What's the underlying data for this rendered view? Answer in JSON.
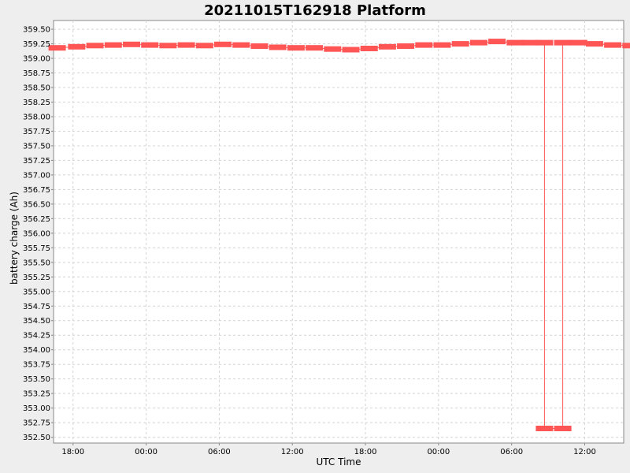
{
  "chart_data": {
    "type": "line",
    "title": "20211015T162918 Platform",
    "xlabel": "UTC Time",
    "ylabel": "battery charge (Ah)",
    "x_unit": "hours",
    "xlim": [
      -1.6,
      45.2
    ],
    "ylim": [
      352.4,
      359.65
    ],
    "grid": true,
    "legend": "none",
    "x_ticks": [
      {
        "x": 0,
        "label": "18:00"
      },
      {
        "x": 6,
        "label": "00:00"
      },
      {
        "x": 12,
        "label": "06:00"
      },
      {
        "x": 18,
        "label": "12:00"
      },
      {
        "x": 24,
        "label": "18:00"
      },
      {
        "x": 30,
        "label": "00:00"
      },
      {
        "x": 36,
        "label": "06:00"
      },
      {
        "x": 42,
        "label": "12:00"
      },
      {
        "x": 48,
        "label": "18:00"
      }
    ],
    "y_ticks": [
      352.5,
      352.75,
      353.0,
      353.25,
      353.5,
      353.75,
      354.0,
      354.25,
      354.5,
      354.75,
      355.0,
      355.25,
      355.5,
      355.75,
      356.0,
      356.25,
      356.5,
      356.75,
      357.0,
      357.25,
      357.5,
      357.75,
      358.0,
      358.25,
      358.5,
      358.75,
      359.0,
      359.25,
      359.5
    ],
    "series": [
      {
        "color": "#ff5555",
        "points": [
          [
            -1.3,
            359.18
          ],
          [
            0.3,
            359.2
          ],
          [
            1.8,
            359.22
          ],
          [
            3.3,
            359.23
          ],
          [
            4.8,
            359.24
          ],
          [
            6.3,
            359.23
          ],
          [
            7.8,
            359.22
          ],
          [
            9.3,
            359.23
          ],
          [
            10.8,
            359.22
          ],
          [
            12.3,
            359.24
          ],
          [
            13.8,
            359.23
          ],
          [
            15.3,
            359.21
          ],
          [
            16.8,
            359.19
          ],
          [
            18.3,
            359.18
          ],
          [
            19.8,
            359.18
          ],
          [
            21.3,
            359.16
          ],
          [
            22.8,
            359.15
          ],
          [
            24.3,
            359.17
          ],
          [
            25.8,
            359.2
          ],
          [
            27.3,
            359.21
          ],
          [
            28.8,
            359.23
          ],
          [
            30.3,
            359.23
          ],
          [
            31.8,
            359.25
          ],
          [
            33.3,
            359.27
          ],
          [
            34.8,
            359.29
          ],
          [
            36.3,
            359.27
          ],
          [
            37.5,
            359.27
          ],
          [
            38.7,
            359.27
          ],
          [
            38.7,
            352.65
          ],
          [
            40.2,
            352.65
          ],
          [
            40.2,
            359.27
          ],
          [
            41.5,
            359.27
          ],
          [
            42.8,
            359.25
          ],
          [
            44.3,
            359.23
          ],
          [
            45.8,
            359.22
          ],
          [
            47.3,
            359.23
          ],
          [
            48.6,
            359.24
          ]
        ]
      }
    ]
  }
}
